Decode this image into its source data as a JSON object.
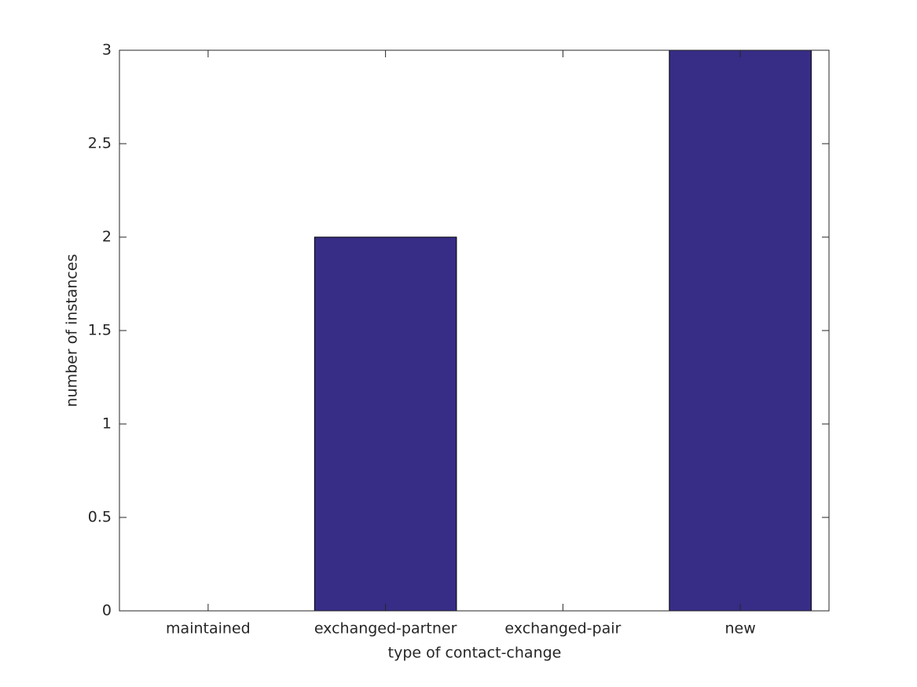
{
  "chart_data": {
    "type": "bar",
    "categories": [
      "maintained",
      "exchanged-partner",
      "exchanged-pair",
      "new"
    ],
    "values": [
      0,
      2,
      0,
      3
    ],
    "color": "#372c86",
    "xlabel": "type of contact-change",
    "ylabel": "number of instances",
    "ylim": [
      0,
      3
    ],
    "yticks": [
      0,
      0.5,
      1,
      1.5,
      2,
      2.5,
      3
    ],
    "grid": false
  }
}
